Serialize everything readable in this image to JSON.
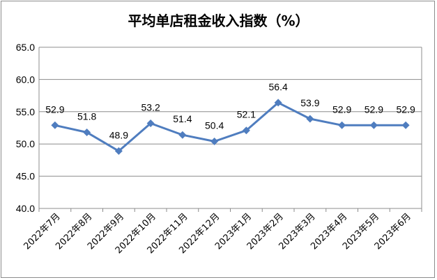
{
  "chart_data": {
    "type": "line",
    "title": "平均单店租金收入指数（%）",
    "categories": [
      "2022年7月",
      "2022年8月",
      "2022年9月",
      "2022年10月",
      "2022年11月",
      "2022年12月",
      "2023年1月",
      "2023年2月",
      "2023年3月",
      "2023年4月",
      "2023年5月",
      "2023年6月"
    ],
    "series": [
      {
        "values": [
          52.9,
          51.8,
          48.9,
          53.2,
          51.4,
          50.4,
          52.1,
          56.4,
          53.9,
          52.9,
          52.9,
          52.9
        ]
      }
    ],
    "data_labels": [
      "52.9",
      "51.8",
      "48.9",
      "53.2",
      "51.4",
      "50.4",
      "52.1",
      "56.4",
      "53.9",
      "52.9",
      "52.9",
      "52.9"
    ],
    "y_ticks": [
      "40.0",
      "45.0",
      "50.0",
      "55.0",
      "60.0",
      "65.0"
    ],
    "ylim": [
      40,
      65
    ],
    "grid": true,
    "legend": "none",
    "line_color": "#4F7DBF",
    "grid_color": "#8c8c8c"
  }
}
